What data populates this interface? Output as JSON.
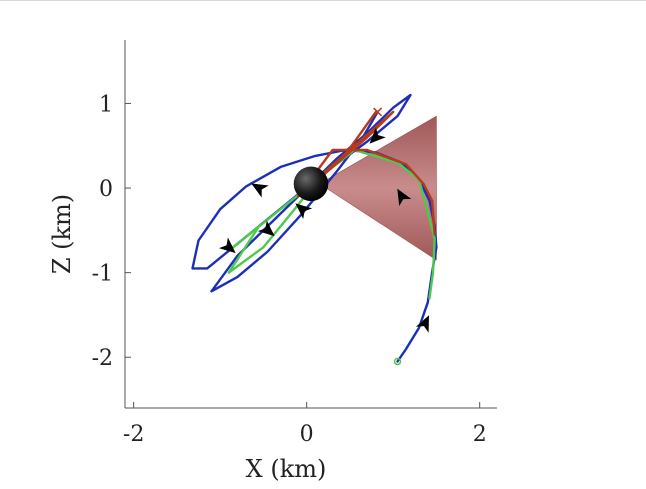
{
  "chart_data": {
    "type": "line",
    "title": "",
    "xlabel": "X (km)",
    "ylabel": "Z (km)",
    "xlim": [
      -2.1,
      2.2
    ],
    "ylim": [
      -2.6,
      1.75
    ],
    "xticks": [
      -2,
      0,
      2
    ],
    "yticks": [
      1,
      0,
      -1,
      -2
    ],
    "xtick_labels": [
      "-2",
      "0",
      "2"
    ],
    "ytick_labels": [
      "1",
      "0",
      "-1",
      "-2"
    ],
    "grid": false,
    "legend": "none",
    "colors": {
      "blue": "#1b2fb8",
      "green": "#4ec94e",
      "red": "#b83a1a",
      "cone_fill": "#b06a6a",
      "body": "#1a1a1a",
      "axis": "#555555"
    },
    "target_body": {
      "x": 0.05,
      "z": 0.05,
      "radius": 0.2
    },
    "sensor_cone": {
      "apex": [
        0.15,
        0.05
      ],
      "base_top": [
        1.5,
        0.85
      ],
      "base_bottom": [
        1.5,
        -0.85
      ]
    },
    "series": [
      {
        "color": "blue",
        "points": [
          [
            1.05,
            -2.05
          ],
          [
            1.15,
            -1.9
          ],
          [
            1.3,
            -1.65
          ],
          [
            1.4,
            -1.35
          ],
          [
            1.45,
            -1.0
          ],
          [
            1.5,
            -0.7
          ],
          [
            1.48,
            -0.45
          ],
          [
            1.42,
            -0.15
          ],
          [
            1.3,
            0.1
          ],
          [
            1.1,
            0.3
          ],
          [
            0.8,
            0.42
          ],
          [
            0.45,
            0.45
          ],
          [
            0.1,
            0.38
          ],
          [
            -0.3,
            0.25
          ],
          [
            -0.7,
            0.02
          ],
          [
            -1.0,
            -0.25
          ],
          [
            -1.25,
            -0.62
          ],
          [
            -1.32,
            -0.95
          ],
          [
            -1.15,
            -0.95
          ],
          [
            -0.85,
            -0.7
          ],
          [
            -0.55,
            -0.45
          ],
          [
            -0.25,
            -0.2
          ],
          [
            0.05,
            0.05
          ],
          [
            0.35,
            0.35
          ],
          [
            0.7,
            0.65
          ],
          [
            1.0,
            0.95
          ],
          [
            1.2,
            1.1
          ],
          [
            1.05,
            0.85
          ],
          [
            0.7,
            0.55
          ],
          [
            0.3,
            0.25
          ],
          [
            -0.1,
            -0.1
          ],
          [
            -0.45,
            -0.45
          ],
          [
            -0.8,
            -0.8
          ],
          [
            -1.1,
            -1.22
          ],
          [
            -0.8,
            -1.05
          ],
          [
            -0.45,
            -0.75
          ],
          [
            -0.05,
            -0.3
          ],
          [
            0.35,
            0.2
          ],
          [
            0.65,
            0.6
          ],
          [
            0.82,
            0.9
          ]
        ]
      },
      {
        "color": "green",
        "points": [
          [
            1.42,
            -1.3
          ],
          [
            1.46,
            -1.0
          ],
          [
            1.48,
            -0.6
          ],
          [
            1.3,
            0.1
          ],
          [
            1.05,
            0.3
          ],
          [
            0.55,
            0.45
          ],
          [
            -0.85,
            -0.7
          ],
          [
            -0.55,
            -0.45
          ],
          [
            -0.9,
            -1.0
          ],
          [
            -0.5,
            -0.7
          ],
          [
            -0.1,
            -0.2
          ],
          [
            0.05,
            0.0
          ]
        ]
      },
      {
        "color": "red",
        "points": [
          [
            1.48,
            -0.55
          ],
          [
            1.45,
            -0.15
          ],
          [
            1.35,
            0.05
          ],
          [
            1.15,
            0.28
          ],
          [
            0.7,
            0.45
          ],
          [
            0.3,
            0.45
          ],
          [
            -0.1,
            -0.1
          ],
          [
            0.3,
            0.25
          ],
          [
            0.7,
            0.6
          ],
          [
            1.0,
            0.9
          ],
          [
            0.05,
            0.05
          ],
          [
            0.45,
            0.4
          ],
          [
            0.8,
            0.9
          ]
        ]
      }
    ],
    "start_marker": {
      "x": 1.05,
      "z": -2.05,
      "style": "circle",
      "color": "green"
    },
    "end_marker": {
      "x": 0.82,
      "z": 0.9,
      "style": "x",
      "color": "red"
    },
    "direction_arrows": [
      {
        "x": 1.37,
        "z": -1.6,
        "angle": -65
      },
      {
        "x": 1.1,
        "z": -0.1,
        "angle": -120
      },
      {
        "x": 0.8,
        "z": 0.6,
        "angle": 135
      },
      {
        "x": -0.55,
        "z": 0.0,
        "angle": 210
      },
      {
        "x": -0.9,
        "z": -0.7,
        "angle": 40
      },
      {
        "x": -0.45,
        "z": -0.5,
        "angle": 40
      },
      {
        "x": -0.05,
        "z": -0.25,
        "angle": 220
      }
    ]
  }
}
